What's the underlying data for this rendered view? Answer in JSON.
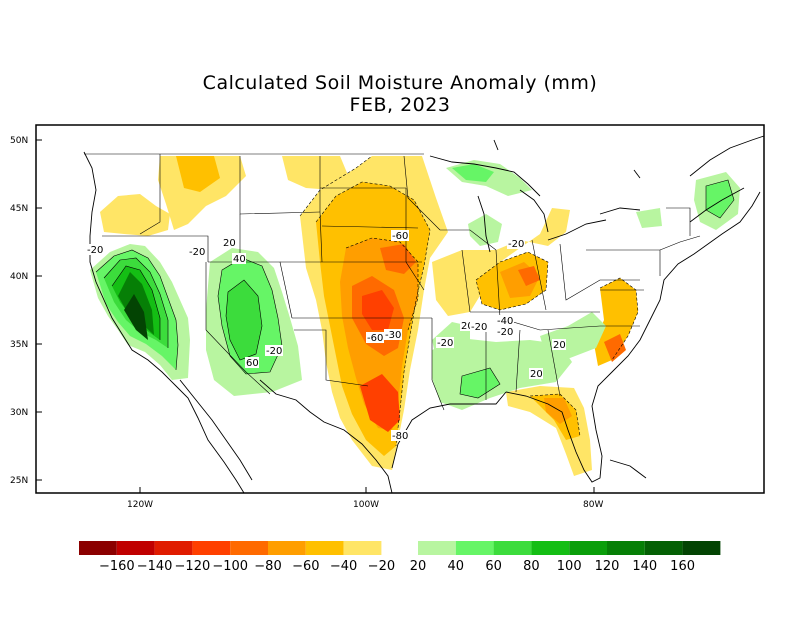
{
  "title": "Calculated Soil Moisture Anomaly (mm)",
  "subtitle": "FEB, 2023",
  "lat_labels": [
    "50N",
    "45N",
    "40N",
    "35N",
    "30N",
    "25N"
  ],
  "lon_labels": [
    "120W",
    "100W",
    "80W"
  ],
  "contour_labels": [
    "-20",
    "-20",
    "20",
    "40",
    "-20",
    "60",
    "-60",
    "-60",
    "-30",
    "20",
    "-40",
    "-20",
    "-20",
    "-20",
    "20",
    "-20",
    "20",
    "-80"
  ],
  "legend": {
    "dry_colors": [
      "#8b0000",
      "#c00000",
      "#e01c00",
      "#ff4000",
      "#ff6a00",
      "#ff9e00",
      "#ffc000",
      "#ffe566"
    ],
    "wet_colors": [
      "#b8f5a0",
      "#66f566",
      "#3cdc3c",
      "#14be14",
      "#0a9e0a",
      "#067f06",
      "#046004",
      "#034403"
    ],
    "dry_labels": [
      "-160",
      "-140",
      "-120",
      "-100",
      "-80",
      "-60",
      "-40",
      "-20"
    ],
    "wet_labels": [
      "20",
      "40",
      "60",
      "80",
      "100",
      "120",
      "140",
      "160"
    ]
  }
}
